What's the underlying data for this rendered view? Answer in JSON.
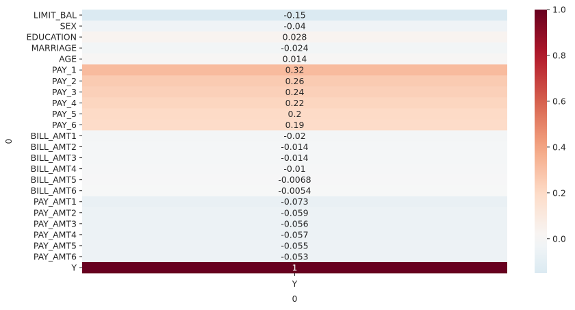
{
  "chart_data": {
    "type": "heatmap",
    "xlabel": "0",
    "ylabel": "0",
    "columns": [
      "Y"
    ],
    "rows": [
      "LIMIT_BAL",
      "SEX",
      "EDUCATION",
      "MARRIAGE",
      "AGE",
      "PAY_1",
      "PAY_2",
      "PAY_3",
      "PAY_4",
      "PAY_5",
      "PAY_6",
      "BILL_AMT1",
      "BILL_AMT2",
      "BILL_AMT3",
      "BILL_AMT4",
      "BILL_AMT5",
      "BILL_AMT6",
      "PAY_AMT1",
      "PAY_AMT2",
      "PAY_AMT3",
      "PAY_AMT4",
      "PAY_AMT5",
      "PAY_AMT6",
      "Y"
    ],
    "values": [
      -0.15,
      -0.04,
      0.028,
      -0.024,
      0.014,
      0.32,
      0.26,
      0.24,
      0.22,
      0.2,
      0.19,
      -0.02,
      -0.014,
      -0.014,
      -0.01,
      -0.0068,
      -0.0054,
      -0.073,
      -0.059,
      -0.056,
      -0.057,
      -0.055,
      -0.053,
      1
    ],
    "value_labels": [
      "-0.15",
      "-0.04",
      "0.028",
      "-0.024",
      "0.014",
      "0.32",
      "0.26",
      "0.24",
      "0.22",
      "0.2",
      "0.19",
      "-0.02",
      "-0.014",
      "-0.014",
      "-0.01",
      "-0.0068",
      "-0.0054",
      "-0.073",
      "-0.059",
      "-0.056",
      "-0.057",
      "-0.055",
      "-0.053",
      "1"
    ],
    "colormap": "RdBu_r",
    "center": 0,
    "colorbar": {
      "range": [
        -0.15,
        1.0
      ],
      "ticks": [
        0.0,
        0.2,
        0.4,
        0.6,
        0.8,
        1.0
      ],
      "tick_labels": [
        "0.0",
        "0.2",
        "0.4",
        "0.6",
        "0.8",
        "1.0"
      ]
    }
  }
}
